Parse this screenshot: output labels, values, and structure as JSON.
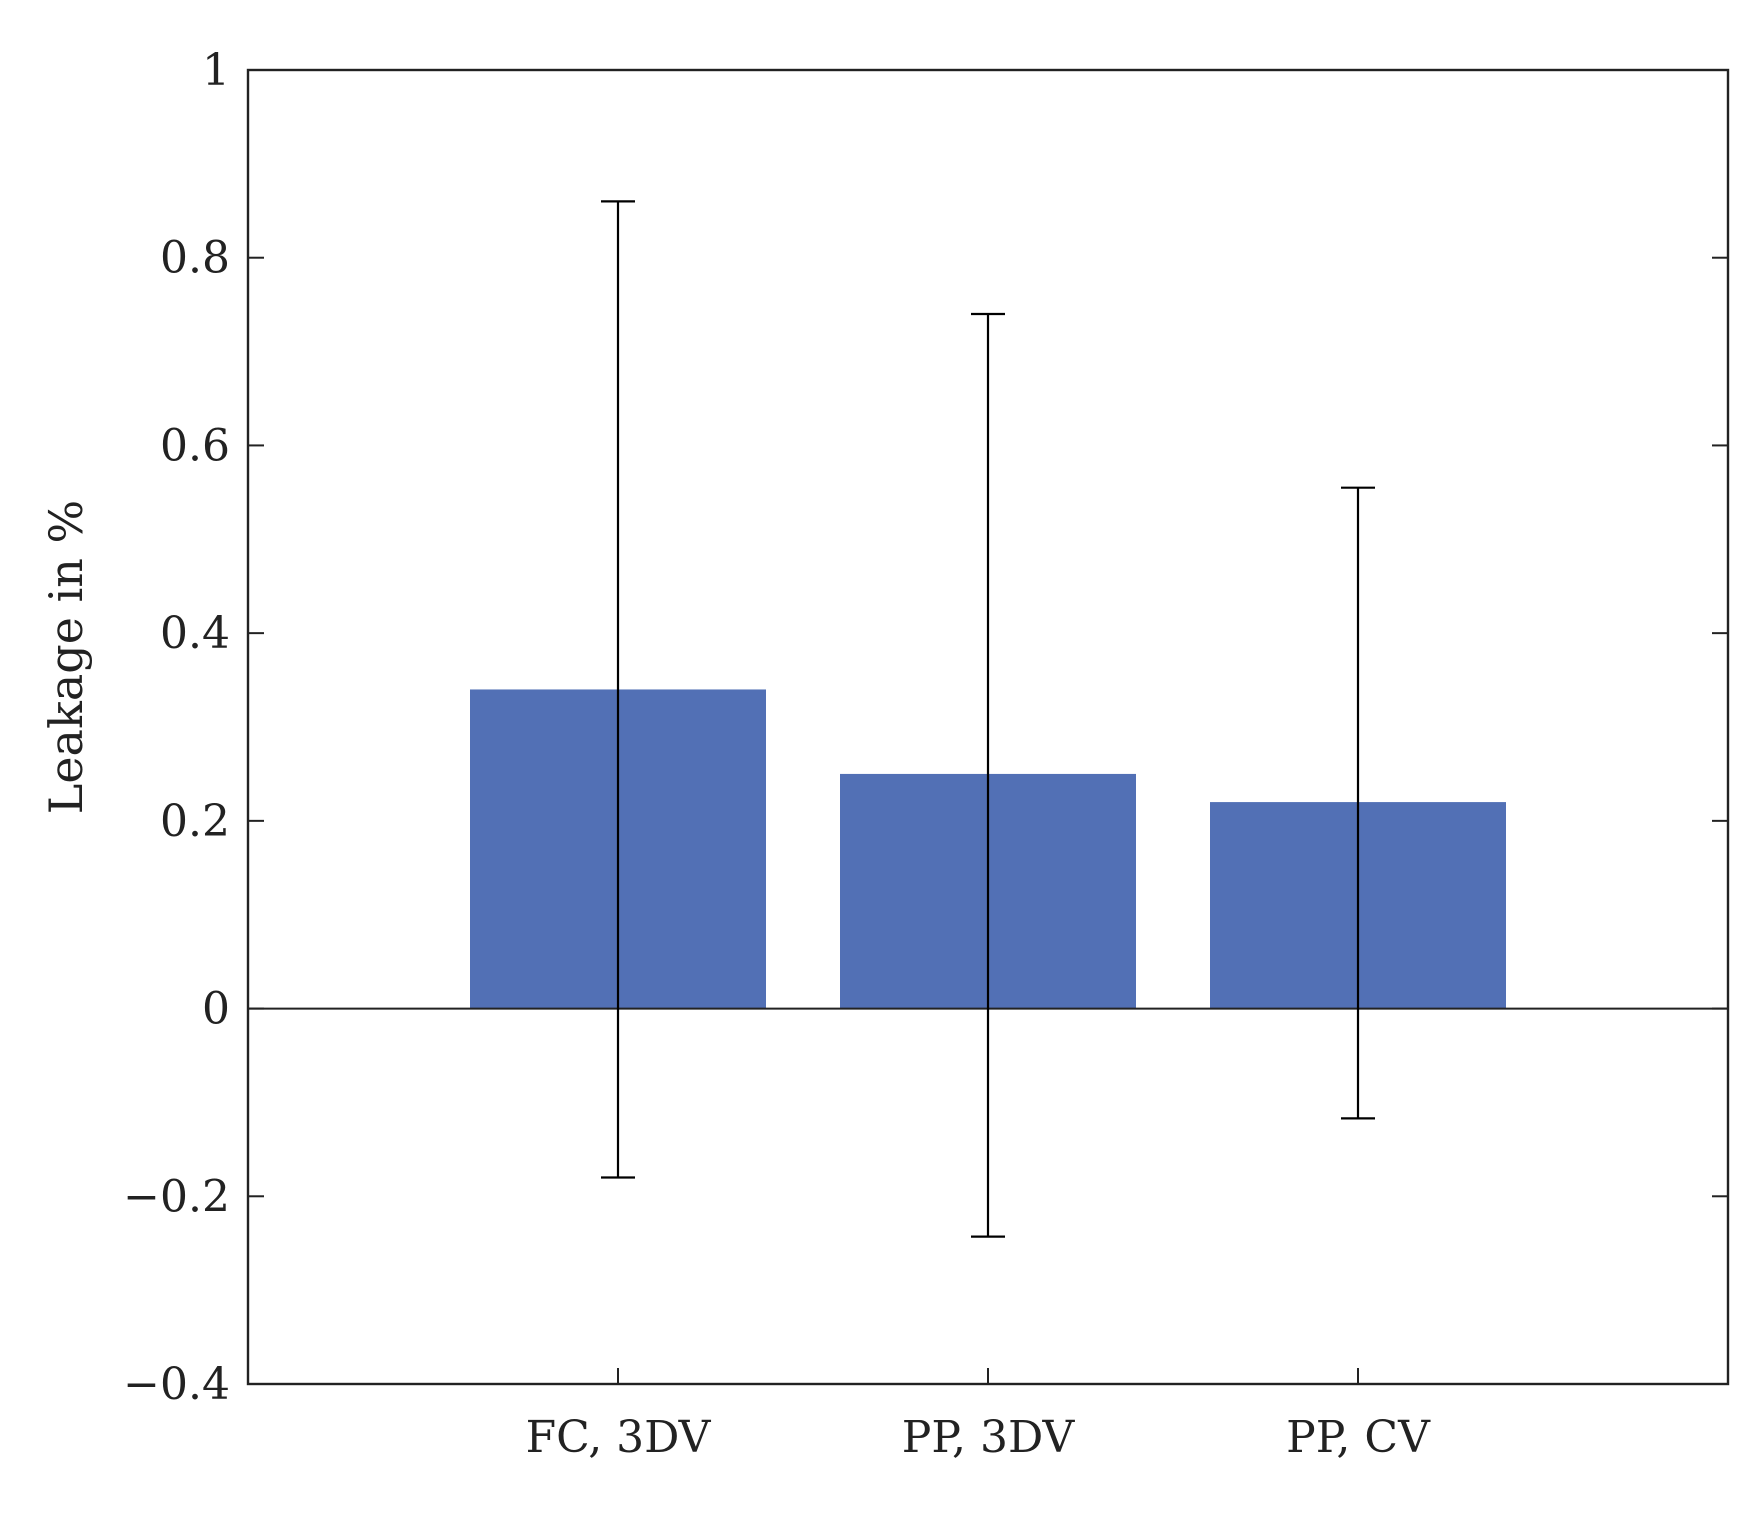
{
  "chart_data": {
    "type": "bar",
    "title": "",
    "xlabel": "",
    "ylabel": "Leakage in %",
    "categories": [
      "FC, 3DV",
      "PP, 3DV",
      "PP, CV"
    ],
    "values": [
      0.34,
      0.25,
      0.22
    ],
    "error_upper": [
      0.86,
      0.74,
      0.555
    ],
    "error_lower": [
      -0.18,
      -0.243,
      -0.117
    ],
    "ylim": [
      -0.4,
      1
    ],
    "xlim": [
      0,
      4
    ],
    "yticks": [
      -0.4,
      -0.2,
      0,
      0.2,
      0.4,
      0.6,
      0.8,
      1
    ],
    "ytick_labels": [
      "−0.4",
      "−0.2",
      "0",
      "0.2",
      "0.4",
      "0.6",
      "0.8",
      "1"
    ],
    "grid": false,
    "bar_color": "#5270b5",
    "axis_color": "#222222"
  }
}
